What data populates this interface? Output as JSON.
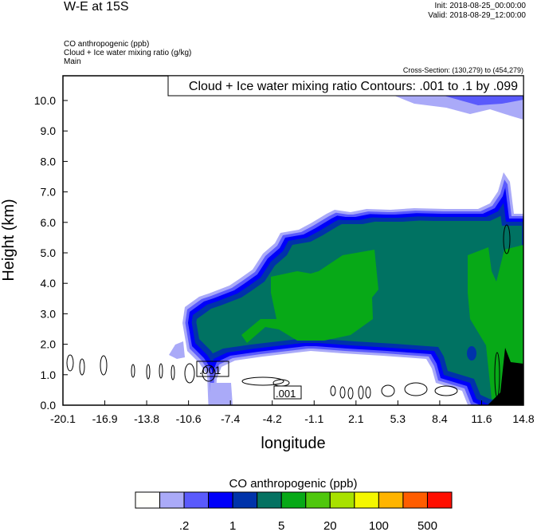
{
  "header": {
    "title": "W-E at 15S",
    "init": "Init: 2018-08-25_00:00:00",
    "valid": "Valid: 2018-08-29_12:00:00",
    "fields": [
      "CO anthropogenic   (ppb)",
      "Cloud + Ice water mixing ratio   (g/kg)",
      "Main"
    ],
    "cross_section": "Cross-Section: (130,279) to (454,279)"
  },
  "chart_data": {
    "type": "heatmap",
    "title": "",
    "contour_legend": "Cloud + Ice water mixing ratio Contours: .001 to .1 by .099",
    "contour_labels": [
      ".001",
      ".001"
    ],
    "xlabel": "longitude",
    "ylabel": "Height (km)",
    "xlim": [
      -20.1,
      14.8
    ],
    "ylim": [
      0.0,
      10.8
    ],
    "xticks": [
      "-20.1",
      "-16.9",
      "-13.8",
      "-10.6",
      "-7.4",
      "-4.2",
      "-1.1",
      "2.1",
      "5.3",
      "8.4",
      "11.6",
      "14.8"
    ],
    "yticks": [
      "0.0",
      "1.0",
      "2.0",
      "3.0",
      "4.0",
      "5.0",
      "6.0",
      "7.0",
      "8.0",
      "9.0",
      "10.0"
    ],
    "colorbar": {
      "title": "CO anthropogenic  (ppb)",
      "colors": [
        "#fffffb",
        "#aaaaf8",
        "#5a5afc",
        "#0000fa",
        "#0033aa",
        "#057262",
        "#07a917",
        "#4fc70d",
        "#a8e100",
        "#f5f700",
        "#ffb400",
        "#ff5d00",
        "#ff0e00"
      ],
      "labels": [
        ".2",
        "1",
        "5",
        "20",
        "100",
        "500"
      ]
    },
    "terrain_color": "#000000"
  }
}
